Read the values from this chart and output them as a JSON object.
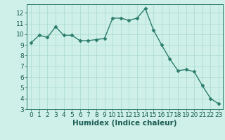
{
  "x": [
    0,
    1,
    2,
    3,
    4,
    5,
    6,
    7,
    8,
    9,
    10,
    11,
    12,
    13,
    14,
    15,
    16,
    17,
    18,
    19,
    20,
    21,
    22,
    23
  ],
  "y": [
    9.2,
    9.9,
    9.7,
    10.7,
    9.9,
    9.9,
    9.4,
    9.4,
    9.5,
    9.6,
    11.5,
    11.5,
    11.3,
    11.5,
    12.4,
    10.4,
    9.0,
    7.7,
    6.6,
    6.7,
    6.5,
    5.2,
    4.0,
    3.5
  ],
  "line_color": "#2d7d6e",
  "marker": "D",
  "marker_size": 2.5,
  "bg_color": "#cef0e8",
  "grid_color": "#aad8cc",
  "xlabel": "Humidex (Indice chaleur)",
  "xlim": [
    -0.5,
    23.5
  ],
  "ylim": [
    3,
    12.8
  ],
  "yticks": [
    3,
    4,
    5,
    6,
    7,
    8,
    9,
    10,
    11,
    12
  ],
  "xticks": [
    0,
    1,
    2,
    3,
    4,
    5,
    6,
    7,
    8,
    9,
    10,
    11,
    12,
    13,
    14,
    15,
    16,
    17,
    18,
    19,
    20,
    21,
    22,
    23
  ],
  "tick_label_fontsize": 6.5,
  "xlabel_fontsize": 7.5,
  "axis_text_color": "#1a5c52",
  "line_width": 1.0,
  "spine_color": "#2d7d6e"
}
